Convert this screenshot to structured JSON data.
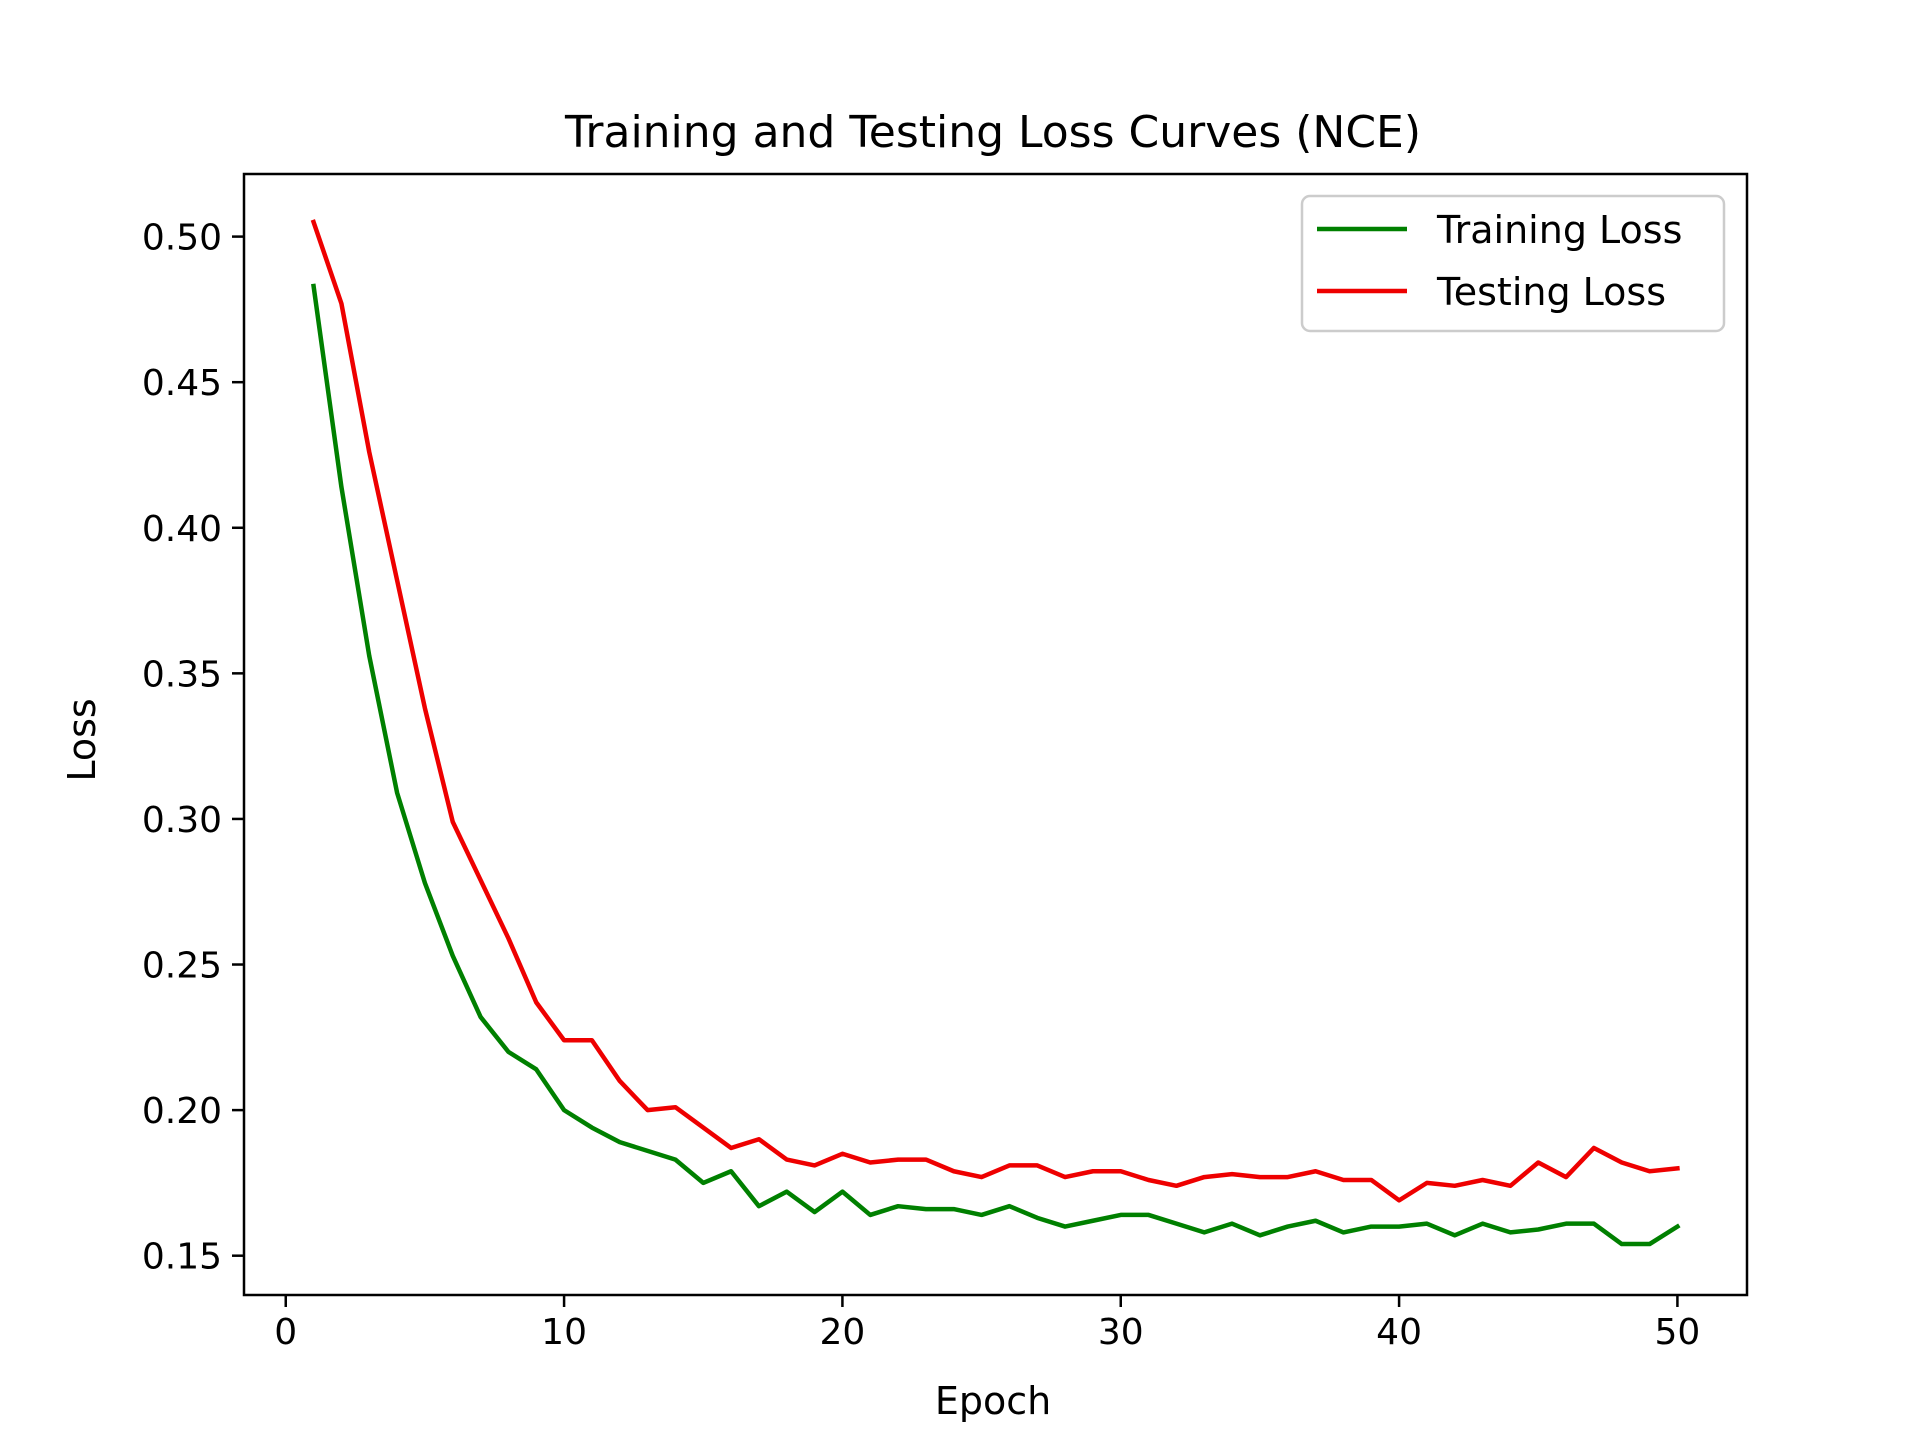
{
  "chart_data": {
    "type": "line",
    "title": "Training and Testing Loss Curves (NCE)",
    "xlabel": "Epoch",
    "ylabel": "Loss",
    "xlim": [
      -1.5,
      52.5
    ],
    "ylim": [
      0.1365,
      0.5215
    ],
    "xticks": [
      0,
      10,
      20,
      30,
      40,
      50
    ],
    "yticks": [
      0.15,
      0.2,
      0.25,
      0.3,
      0.35,
      0.4,
      0.45,
      0.5
    ],
    "ytick_labels": [
      "0.15",
      "0.20",
      "0.25",
      "0.30",
      "0.35",
      "0.40",
      "0.45",
      "0.50"
    ],
    "grid": false,
    "legend_position": "top-right",
    "x": [
      1,
      2,
      3,
      4,
      5,
      6,
      7,
      8,
      9,
      10,
      11,
      12,
      13,
      14,
      15,
      16,
      17,
      18,
      19,
      20,
      21,
      22,
      23,
      24,
      25,
      26,
      27,
      28,
      29,
      30,
      31,
      32,
      33,
      34,
      35,
      36,
      37,
      38,
      39,
      40,
      41,
      42,
      43,
      44,
      45,
      46,
      47,
      48,
      49,
      50
    ],
    "series": [
      {
        "name": "Training Loss",
        "color": "#008000",
        "values": [
          0.483,
          0.414,
          0.356,
          0.309,
          0.278,
          0.253,
          0.232,
          0.22,
          0.214,
          0.2,
          0.194,
          0.189,
          0.186,
          0.183,
          0.175,
          0.179,
          0.167,
          0.172,
          0.165,
          0.172,
          0.164,
          0.167,
          0.166,
          0.166,
          0.164,
          0.167,
          0.163,
          0.16,
          0.162,
          0.164,
          0.164,
          0.161,
          0.158,
          0.161,
          0.157,
          0.16,
          0.162,
          0.158,
          0.16,
          0.16,
          0.161,
          0.157,
          0.161,
          0.158,
          0.159,
          0.161,
          0.161,
          0.154,
          0.154,
          0.16
        ]
      },
      {
        "name": "Testing Loss",
        "color": "#ee0000",
        "values": [
          0.505,
          0.477,
          0.426,
          0.382,
          0.338,
          0.299,
          0.279,
          0.259,
          0.237,
          0.224,
          0.224,
          0.21,
          0.2,
          0.201,
          0.194,
          0.187,
          0.19,
          0.183,
          0.181,
          0.185,
          0.182,
          0.183,
          0.183,
          0.179,
          0.177,
          0.181,
          0.181,
          0.177,
          0.179,
          0.179,
          0.176,
          0.174,
          0.177,
          0.178,
          0.177,
          0.177,
          0.179,
          0.176,
          0.176,
          0.169,
          0.175,
          0.174,
          0.176,
          0.174,
          0.182,
          0.177,
          0.187,
          0.182,
          0.179,
          0.18
        ]
      }
    ]
  }
}
